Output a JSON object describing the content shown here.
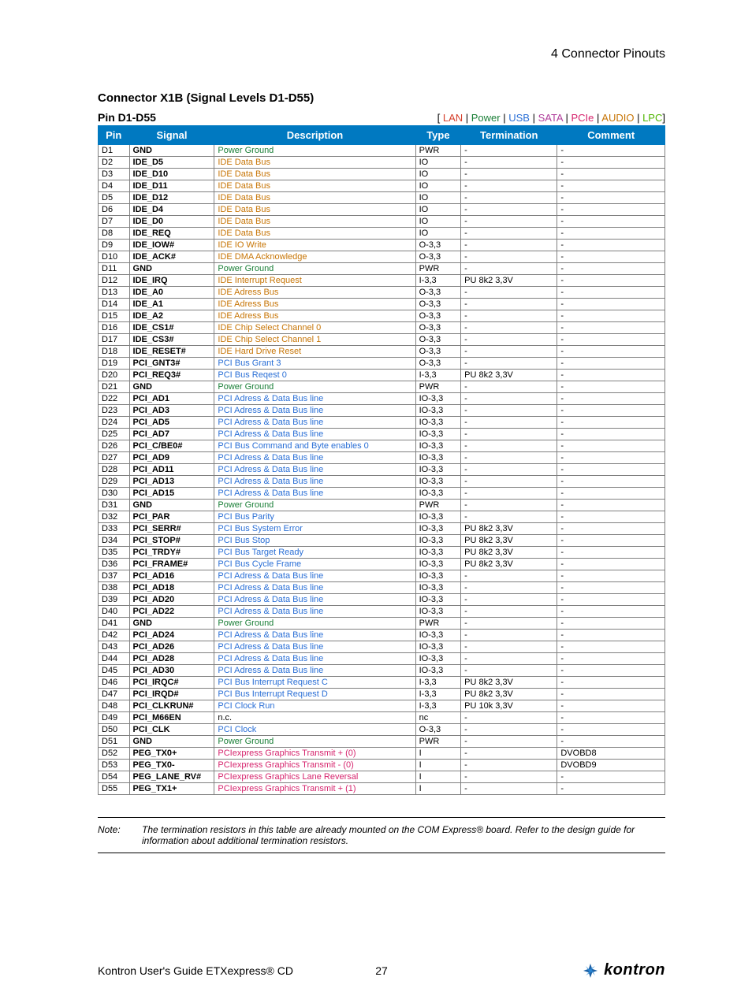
{
  "header": {
    "title": "4 Connector Pinouts"
  },
  "subtitle": "Connector X1B (Signal Levels D1-D55)",
  "subhead": "Pin D1-D55",
  "legend": {
    "items": [
      {
        "label": "LAN",
        "color": "#d53f2b"
      },
      {
        "label": "Power",
        "color": "#1a7f37"
      },
      {
        "label": "USB",
        "color": "#2a6fd6"
      },
      {
        "label": "SATA",
        "color": "#b03f9b"
      },
      {
        "label": "PCIe",
        "color": "#d6246d"
      },
      {
        "label": "AUDIO",
        "color": "#c77506"
      },
      {
        "label": "LPC",
        "color": "#4fb400"
      }
    ]
  },
  "colors": {
    "power": "#1a7f37",
    "ide": "#c77506",
    "pci": "#2a6fd6",
    "pcie": "#d6246d",
    "black": "#000000"
  },
  "table": {
    "columns": [
      "Pin",
      "Signal",
      "Description",
      "Type",
      "Termination",
      "Comment"
    ],
    "rows": [
      {
        "pin": "D1",
        "signal": "GND",
        "desc": "Power Ground",
        "desc_color": "power",
        "type": "PWR",
        "term": "-",
        "comment": "-"
      },
      {
        "pin": "D2",
        "signal": "IDE_D5",
        "desc": "IDE Data Bus",
        "desc_color": "ide",
        "type": "IO",
        "term": "-",
        "comment": "-"
      },
      {
        "pin": "D3",
        "signal": "IDE_D10",
        "desc": "IDE Data Bus",
        "desc_color": "ide",
        "type": "IO",
        "term": "-",
        "comment": "-"
      },
      {
        "pin": "D4",
        "signal": "IDE_D11",
        "desc": "IDE Data Bus",
        "desc_color": "ide",
        "type": "IO",
        "term": "-",
        "comment": "-"
      },
      {
        "pin": "D5",
        "signal": "IDE_D12",
        "desc": "IDE Data Bus",
        "desc_color": "ide",
        "type": "IO",
        "term": "-",
        "comment": "-"
      },
      {
        "pin": "D6",
        "signal": "IDE_D4",
        "desc": "IDE Data Bus",
        "desc_color": "ide",
        "type": "IO",
        "term": "-",
        "comment": "-"
      },
      {
        "pin": "D7",
        "signal": "IDE_D0",
        "desc": "IDE Data Bus",
        "desc_color": "ide",
        "type": "IO",
        "term": "-",
        "comment": "-"
      },
      {
        "pin": "D8",
        "signal": "IDE_REQ",
        "desc": "IDE Data Bus",
        "desc_color": "ide",
        "type": "IO",
        "term": "-",
        "comment": "-"
      },
      {
        "pin": "D9",
        "signal": "IDE_IOW#",
        "desc": "IDE IO Write",
        "desc_color": "ide",
        "type": "O-3,3",
        "term": "-",
        "comment": "-"
      },
      {
        "pin": "D10",
        "signal": "IDE_ACK#",
        "desc": "IDE DMA Acknowledge",
        "desc_color": "ide",
        "type": "O-3,3",
        "term": "-",
        "comment": "-"
      },
      {
        "pin": "D11",
        "signal": "GND",
        "desc": "Power Ground",
        "desc_color": "power",
        "type": "PWR",
        "term": "-",
        "comment": "-"
      },
      {
        "pin": "D12",
        "signal": "IDE_IRQ",
        "desc": "IDE Interrupt Request",
        "desc_color": "ide",
        "type": "I-3,3",
        "term": "PU 8k2 3,3V",
        "comment": "-"
      },
      {
        "pin": "D13",
        "signal": "IDE_A0",
        "desc": "IDE Adress Bus",
        "desc_color": "ide",
        "type": "O-3,3",
        "term": "-",
        "comment": "-"
      },
      {
        "pin": "D14",
        "signal": "IDE_A1",
        "desc": "IDE Adress Bus",
        "desc_color": "ide",
        "type": "O-3,3",
        "term": "-",
        "comment": "-"
      },
      {
        "pin": "D15",
        "signal": "IDE_A2",
        "desc": "IDE Adress Bus",
        "desc_color": "ide",
        "type": "O-3,3",
        "term": "-",
        "comment": "-"
      },
      {
        "pin": "D16",
        "signal": "IDE_CS1#",
        "desc": "IDE Chip Select Channel 0",
        "desc_color": "ide",
        "type": "O-3,3",
        "term": "-",
        "comment": "-"
      },
      {
        "pin": "D17",
        "signal": "IDE_CS3#",
        "desc": "IDE Chip Select Channel 1",
        "desc_color": "ide",
        "type": "O-3,3",
        "term": "-",
        "comment": "-"
      },
      {
        "pin": "D18",
        "signal": "IDE_RESET#",
        "desc": "IDE Hard Drive Reset",
        "desc_color": "ide",
        "type": "O-3,3",
        "term": "-",
        "comment": "-"
      },
      {
        "pin": "D19",
        "signal": "PCI_GNT3#",
        "desc": "PCI Bus Grant 3",
        "desc_color": "pci",
        "type": "O-3,3",
        "term": "-",
        "comment": "-"
      },
      {
        "pin": "D20",
        "signal": "PCI_REQ3#",
        "desc": "PCI Bus Reqest 0",
        "desc_color": "pci",
        "type": "I-3,3",
        "term": "PU 8k2 3,3V",
        "comment": "-"
      },
      {
        "pin": "D21",
        "signal": "GND",
        "desc": "Power Ground",
        "desc_color": "power",
        "type": "PWR",
        "term": "-",
        "comment": "-"
      },
      {
        "pin": "D22",
        "signal": "PCI_AD1",
        "desc": "PCI Adress & Data Bus line",
        "desc_color": "pci",
        "type": "IO-3,3",
        "term": "-",
        "comment": "-"
      },
      {
        "pin": "D23",
        "signal": "PCI_AD3",
        "desc": "PCI Adress & Data Bus line",
        "desc_color": "pci",
        "type": "IO-3,3",
        "term": "-",
        "comment": "-"
      },
      {
        "pin": "D24",
        "signal": "PCI_AD5",
        "desc": "PCI Adress & Data Bus line",
        "desc_color": "pci",
        "type": "IO-3,3",
        "term": "-",
        "comment": "-"
      },
      {
        "pin": "D25",
        "signal": "PCI_AD7",
        "desc": "PCI Adress & Data Bus line",
        "desc_color": "pci",
        "type": "IO-3,3",
        "term": "-",
        "comment": "-"
      },
      {
        "pin": "D26",
        "signal": "PCI_C/BE0#",
        "desc": "PCI Bus Command and Byte enables 0",
        "desc_color": "pci",
        "type": "IO-3,3",
        "term": "-",
        "comment": "-"
      },
      {
        "pin": "D27",
        "signal": "PCI_AD9",
        "desc": "PCI Adress & Data Bus line",
        "desc_color": "pci",
        "type": "IO-3,3",
        "term": "-",
        "comment": "-"
      },
      {
        "pin": "D28",
        "signal": "PCI_AD11",
        "desc": "PCI Adress & Data Bus line",
        "desc_color": "pci",
        "type": "IO-3,3",
        "term": "-",
        "comment": "-"
      },
      {
        "pin": "D29",
        "signal": "PCI_AD13",
        "desc": "PCI Adress & Data Bus line",
        "desc_color": "pci",
        "type": "IO-3,3",
        "term": "-",
        "comment": "-"
      },
      {
        "pin": "D30",
        "signal": "PCI_AD15",
        "desc": "PCI Adress & Data Bus line",
        "desc_color": "pci",
        "type": "IO-3,3",
        "term": "-",
        "comment": "-"
      },
      {
        "pin": "D31",
        "signal": "GND",
        "desc": "Power Ground",
        "desc_color": "power",
        "type": "PWR",
        "term": "-",
        "comment": "-"
      },
      {
        "pin": "D32",
        "signal": "PCI_PAR",
        "desc": "PCI Bus Parity",
        "desc_color": "pci",
        "type": "IO-3,3",
        "term": "-",
        "comment": "-"
      },
      {
        "pin": "D33",
        "signal": "PCI_SERR#",
        "desc": "PCI Bus System Error",
        "desc_color": "pci",
        "type": "IO-3,3",
        "term": "PU 8k2 3,3V",
        "comment": "-"
      },
      {
        "pin": "D34",
        "signal": "PCI_STOP#",
        "desc": "PCI Bus Stop",
        "desc_color": "pci",
        "type": "IO-3,3",
        "term": "PU 8k2 3,3V",
        "comment": "-"
      },
      {
        "pin": "D35",
        "signal": "PCI_TRDY#",
        "desc": "PCI Bus Target Ready",
        "desc_color": "pci",
        "type": "IO-3,3",
        "term": "PU 8k2 3,3V",
        "comment": "-"
      },
      {
        "pin": "D36",
        "signal": "PCI_FRAME#",
        "desc": "PCI Bus Cycle Frame",
        "desc_color": "pci",
        "type": "IO-3,3",
        "term": "PU 8k2 3,3V",
        "comment": "-"
      },
      {
        "pin": "D37",
        "signal": "PCI_AD16",
        "desc": "PCI Adress & Data Bus line",
        "desc_color": "pci",
        "type": "IO-3,3",
        "term": "-",
        "comment": "-"
      },
      {
        "pin": "D38",
        "signal": "PCI_AD18",
        "desc": "PCI Adress & Data Bus line",
        "desc_color": "pci",
        "type": "IO-3,3",
        "term": "-",
        "comment": "-"
      },
      {
        "pin": "D39",
        "signal": "PCI_AD20",
        "desc": "PCI Adress & Data Bus line",
        "desc_color": "pci",
        "type": "IO-3,3",
        "term": "-",
        "comment": "-"
      },
      {
        "pin": "D40",
        "signal": "PCI_AD22",
        "desc": "PCI Adress & Data Bus line",
        "desc_color": "pci",
        "type": "IO-3,3",
        "term": "-",
        "comment": "-"
      },
      {
        "pin": "D41",
        "signal": "GND",
        "desc": "Power Ground",
        "desc_color": "power",
        "type": "PWR",
        "term": "-",
        "comment": "-"
      },
      {
        "pin": "D42",
        "signal": "PCI_AD24",
        "desc": "PCI Adress & Data Bus line",
        "desc_color": "pci",
        "type": "IO-3,3",
        "term": "-",
        "comment": "-"
      },
      {
        "pin": "D43",
        "signal": "PCI_AD26",
        "desc": "PCI Adress & Data Bus line",
        "desc_color": "pci",
        "type": "IO-3,3",
        "term": "-",
        "comment": "-"
      },
      {
        "pin": "D44",
        "signal": "PCI_AD28",
        "desc": "PCI Adress & Data Bus line",
        "desc_color": "pci",
        "type": "IO-3,3",
        "term": "-",
        "comment": "-"
      },
      {
        "pin": "D45",
        "signal": "PCI_AD30",
        "desc": "PCI Adress & Data Bus line",
        "desc_color": "pci",
        "type": "IO-3,3",
        "term": "-",
        "comment": "-"
      },
      {
        "pin": "D46",
        "signal": "PCI_IRQC#",
        "desc": "PCI Bus Interrupt Request C",
        "desc_color": "pci",
        "type": "I-3,3",
        "term": "PU 8k2 3,3V",
        "comment": "-"
      },
      {
        "pin": "D47",
        "signal": "PCI_IRQD#",
        "desc": "PCI Bus Interrupt Request D",
        "desc_color": "pci",
        "type": "I-3,3",
        "term": "PU 8k2 3,3V",
        "comment": "-"
      },
      {
        "pin": "D48",
        "signal": "PCI_CLKRUN#",
        "desc": "PCI Clock Run",
        "desc_color": "pci",
        "type": "I-3,3",
        "term": "PU 10k 3,3V",
        "comment": "-"
      },
      {
        "pin": "D49",
        "signal": "PCI_M66EN",
        "desc": "n.c.",
        "desc_color": "black",
        "type": "nc",
        "term": "-",
        "comment": "-"
      },
      {
        "pin": "D50",
        "signal": "PCI_CLK",
        "desc": "PCI Clock",
        "desc_color": "pci",
        "type": "O-3,3",
        "term": "-",
        "comment": "-"
      },
      {
        "pin": "D51",
        "signal": "GND",
        "desc": "Power Ground",
        "desc_color": "power",
        "type": "PWR",
        "term": "-",
        "comment": "-"
      },
      {
        "pin": "D52",
        "signal": "PEG_TX0+",
        "desc": "PCIexpress Graphics Transmit + (0)",
        "desc_color": "pcie",
        "type": "I",
        "term": "-",
        "comment": "DVOBD8"
      },
      {
        "pin": "D53",
        "signal": "PEG_TX0-",
        "desc": "PCIexpress Graphics Transmit - (0)",
        "desc_color": "pcie",
        "type": "I",
        "term": "-",
        "comment": "DVOBD9"
      },
      {
        "pin": "D54",
        "signal": "PEG_LANE_RV#",
        "desc": "PCIexpress Graphics Lane Reversal",
        "desc_color": "pcie",
        "type": "I",
        "term": "-",
        "comment": "-"
      },
      {
        "pin": "D55",
        "signal": "PEG_TX1+",
        "desc": "PCIexpress Graphics Transmit + (1)",
        "desc_color": "pcie",
        "type": "I",
        "term": "-",
        "comment": "-"
      }
    ]
  },
  "note": {
    "label": "Note:",
    "text": "The termination resistors in this table are already mounted on the COM Express® board. Refer to the design guide for information about additional termination resistors."
  },
  "footer": {
    "title": "Kontron User's Guide ETXexpress® CD",
    "page": "27",
    "brand": "kontron"
  }
}
